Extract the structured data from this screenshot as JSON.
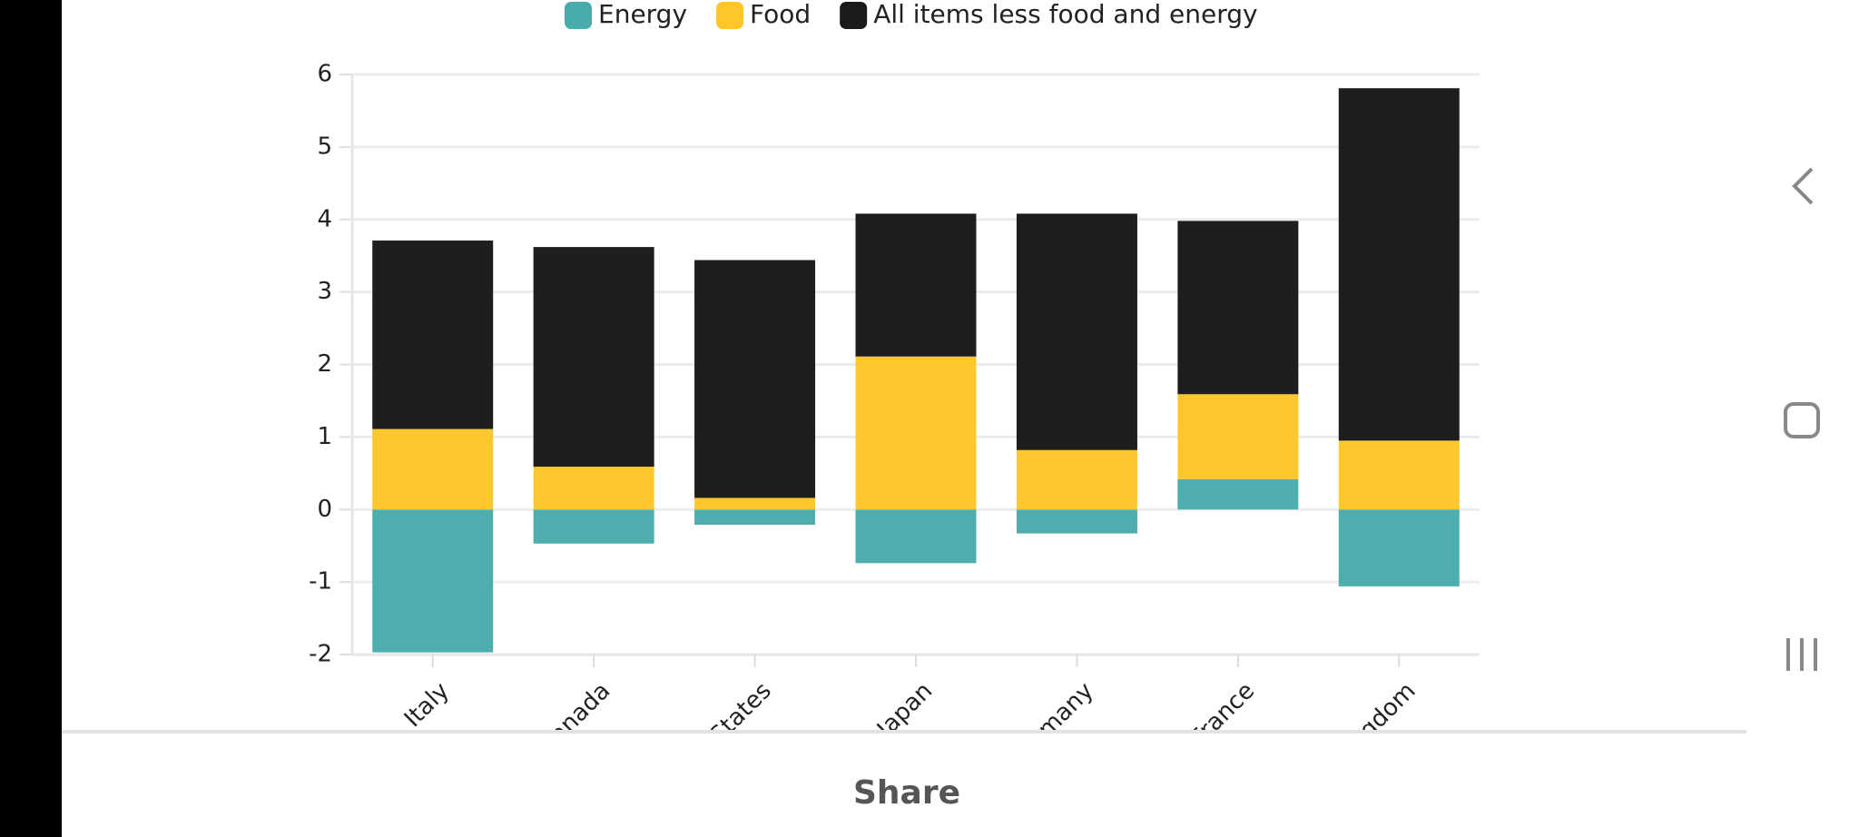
{
  "chart_data": {
    "type": "bar",
    "stacked": true,
    "categories": [
      "Italy",
      "Canada",
      "United States",
      "Japan",
      "Germany",
      "France",
      "United Kingdom"
    ],
    "series": [
      {
        "name": "Energy",
        "color": "#4aabab",
        "values": [
          -1.97,
          -0.47,
          -0.21,
          -0.74,
          -0.33,
          0.42,
          -1.06
        ]
      },
      {
        "name": "Food",
        "color": "#fec62a",
        "values": [
          1.11,
          0.59,
          0.16,
          2.11,
          0.82,
          1.17,
          0.95
        ]
      },
      {
        "name": "All items less food and energy",
        "color": "#1a1a1a",
        "values": [
          2.6,
          3.03,
          3.28,
          1.97,
          3.26,
          2.39,
          4.86
        ]
      }
    ],
    "ylim": [
      -2,
      6
    ],
    "yticks": [
      -2,
      -1,
      0,
      1,
      2,
      3,
      4,
      5,
      6
    ],
    "grid": true
  },
  "share_button": "Share"
}
